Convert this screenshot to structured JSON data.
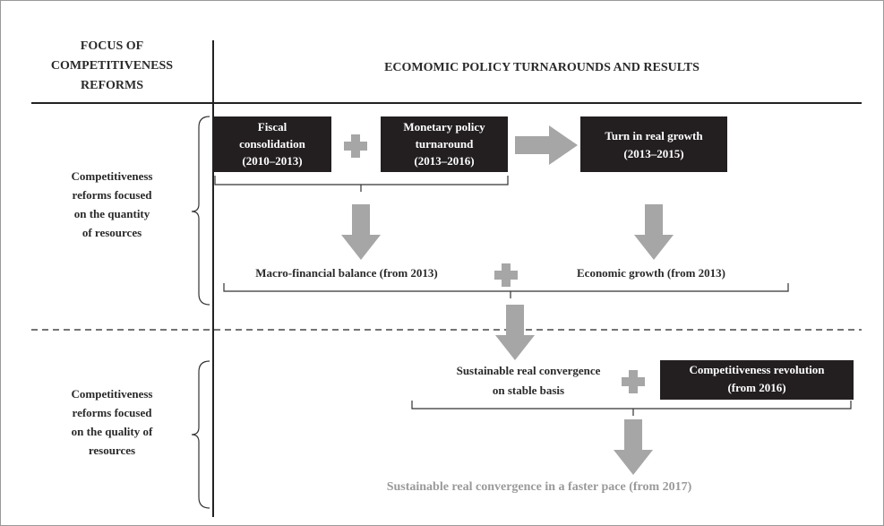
{
  "header": {
    "left": [
      "FOCUS OF",
      "COMPETITIVENESS",
      "REFORMS"
    ],
    "right": "ECOMOMIC POLICY TURNAROUNDS AND RESULTS"
  },
  "rows": [
    {
      "label": [
        "Competitiveness",
        "reforms focused",
        "on the quantity",
        "of resources"
      ]
    },
    {
      "label": [
        "Competitiveness",
        "reforms focused",
        "on the quality of",
        "resources"
      ]
    }
  ],
  "boxes": [
    {
      "lines": [
        "Fiscal",
        "consolidation",
        "(2010–2013)"
      ]
    },
    {
      "lines": [
        "Monetary policy",
        "turnaround",
        "(2013–2016)"
      ]
    },
    {
      "lines": [
        "Turn in real growth",
        "(2013–2015)"
      ]
    },
    {
      "lines": [
        "Competitiveness revolution",
        "(from 2016)"
      ]
    }
  ],
  "results": [
    "Macro-financial balance (from 2013)",
    "Economic growth (from 2013)"
  ],
  "convergence": [
    "Sustainable real convergence",
    "on stable basis"
  ],
  "final": "Sustainable real convergence in a faster pace (from 2017)"
}
